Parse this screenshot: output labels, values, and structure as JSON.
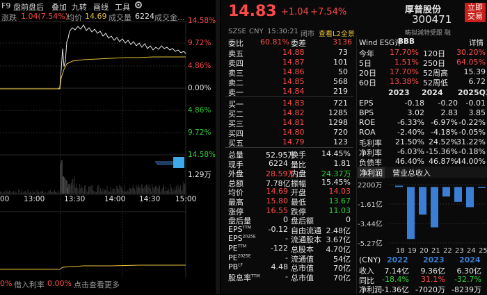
{
  "toolbar": {
    "items": [
      "F9",
      "盘前盘后",
      "叠加",
      "九转",
      "画线",
      "工具"
    ],
    "gear_icon": "gear-icon"
  },
  "infobar": {
    "label_change": "涨跌",
    "change_value": "1.04(7.54%)",
    "label_avg": "均价",
    "avg_value": "14.69",
    "label_volume": "成交量",
    "volume_value": "6224",
    "label_amount": "成交金..."
  },
  "chart_axis": {
    "price_pct": [
      "14.58%",
      "9.72%",
      "4.86%",
      "0.00%",
      "4.86%",
      "9.72%",
      "14.58%"
    ],
    "volume_label": "1.29万",
    "times": [
      "13:00",
      "13:30",
      "14:00",
      "14:30",
      "15:00"
    ],
    "left_edge_time": "00"
  },
  "bottombar": {
    "left_value": "0%",
    "label_borrow": "借入利率",
    "borrow_value": "0.00%",
    "more_link": "点击查看更多"
  },
  "quote": {
    "price": "14.83",
    "change": "+1.04",
    "change_pct": "+7.54%",
    "name": "厚普股份",
    "code": "300471",
    "btn_buy": "立即",
    "btn_buy2": "交易",
    "exchange": "SZSE",
    "currency": "CNY",
    "time": "15:30:21",
    "status": "闭市",
    "l2_link": "查看L2全景",
    "right_label": "畴拟減特受跟 融"
  },
  "order_book": {
    "weibi_label": "委比",
    "weibi_value": "60.81%",
    "weicha_label": "委差",
    "weicha_value": "3136",
    "asks": [
      {
        "label": "卖五",
        "price": "14.88",
        "vol": "73"
      },
      {
        "label": "卖四",
        "price": "14.87",
        "vol": "101"
      },
      {
        "label": "卖三",
        "price": "14.86",
        "vol": "50"
      },
      {
        "label": "卖二",
        "price": "14.85",
        "vol": "568"
      },
      {
        "label": "卖一",
        "price": "14.84",
        "vol": "219"
      }
    ],
    "bids": [
      {
        "label": "买一",
        "price": "14.83",
        "vol": "721"
      },
      {
        "label": "买二",
        "price": "14.82",
        "vol": "1285"
      },
      {
        "label": "买三",
        "price": "14.81",
        "vol": "1298"
      },
      {
        "label": "买四",
        "price": "14.80",
        "vol": "720"
      },
      {
        "label": "买五",
        "price": "14.79",
        "vol": "123"
      }
    ]
  },
  "stats": [
    {
      "l1": "总量",
      "v1": "52.95万",
      "c1": "white",
      "l2": "换手",
      "v2": "14.45%",
      "c2": "white"
    },
    {
      "l1": "现手",
      "v1": "6224",
      "c1": "white",
      "l2": "量比",
      "v2": "1.81",
      "c2": "white"
    },
    {
      "l1": "外盘",
      "v1": "28.59万",
      "c1": "red",
      "l2": "内盘",
      "v2": "24.37万",
      "c2": "green"
    },
    {
      "l1": "总额",
      "v1": "7.78亿",
      "c1": "white",
      "l2": "振幅",
      "v2": "15.45%",
      "c2": "white"
    },
    {
      "l1": "均价",
      "v1": "14.69",
      "c1": "red",
      "l2": "开盘",
      "v2": "14.03",
      "c2": "red"
    },
    {
      "l1": "最高",
      "v1": "15.80",
      "c1": "red",
      "l2": "最低",
      "v2": "13.67",
      "c2": "green"
    },
    {
      "l1": "涨停",
      "v1": "16.55",
      "c1": "red",
      "l2": "跌停",
      "v2": "11.03",
      "c2": "green"
    },
    {
      "l1": "盘后量",
      "v1": "0",
      "c1": "white",
      "l2": "盘后额",
      "v2": "0",
      "c2": "white"
    },
    {
      "l1": "EPS",
      "sup1": "TTM",
      "v1": "-0.12",
      "c1": "white",
      "l2": "自由流通",
      "v2": "2.48亿",
      "c2": "white"
    },
    {
      "l1": "EPS",
      "sup1": "2025E",
      "v1": "-",
      "c1": "white",
      "l2": "流通股本",
      "v2": "3.67亿",
      "c2": "white"
    },
    {
      "l1": "PE",
      "sup1": "TTM",
      "v1": "-122",
      "c1": "white",
      "l2": "总股本",
      "v2": "4.70亿",
      "c2": "white"
    },
    {
      "l1": "PE",
      "sup1": "2025E",
      "v1": "-",
      "c1": "white",
      "l2": "流通值",
      "v2": "54亿",
      "c2": "white"
    },
    {
      "l1": "PB",
      "sup1": "LF",
      "v1": "4.48",
      "c1": "white",
      "l2": "总市值",
      "v2": "70亿",
      "c2": "white"
    },
    {
      "l1": "股息率",
      "sup1": "TTM",
      "v1": "-",
      "c1": "white",
      "l2": "总市值",
      "v2": "70亿",
      "c2": "white"
    }
  ],
  "wind": {
    "title": "Wind ESG评",
    "rating": "BBB",
    "detail": "详情",
    "perf": [
      {
        "l1": "今年",
        "v1": "17.70%",
        "c1": "red",
        "l2": "120日",
        "v2": "30.20%",
        "c2": "red"
      },
      {
        "l1": "5日",
        "v1": "1.51%",
        "c1": "red",
        "l2": "250日",
        "v2": "64.05%",
        "c2": "red"
      },
      {
        "l1": "20日",
        "v1": "17.70%",
        "c1": "red",
        "l2": "52周高",
        "v2": "15.39",
        "c2": "white"
      },
      {
        "l1": "60日",
        "v1": "13.38%",
        "c1": "red",
        "l2": "52周低",
        "v2": "6.72",
        "c2": "white"
      }
    ],
    "years": [
      "2023",
      "2024",
      "2025Q3"
    ],
    "fin": [
      {
        "label": "EPS",
        "v": [
          "-0.18",
          "-0.20",
          "-0.01"
        ]
      },
      {
        "label": "BPS",
        "v": [
          "3.02",
          "2.83",
          "3.85"
        ]
      },
      {
        "label": "ROE",
        "v": [
          "-6.33%",
          "-6.97%",
          "-0.22%"
        ]
      },
      {
        "label": "ROA",
        "v": [
          "-2.40%",
          "-4.18%",
          "-0.05%"
        ]
      },
      {
        "label": "毛利率",
        "v": [
          "21.50%",
          "24.52%",
          "31.22%"
        ]
      },
      {
        "label": "净利率",
        "v": [
          "-6.03%",
          "-15.36%",
          "-0.18%"
        ]
      },
      {
        "label": "负债率",
        "v": [
          "46.40%",
          "46.87%",
          "44.00%"
        ]
      }
    ],
    "tabs": [
      "净利润",
      "营业总收入"
    ]
  },
  "chart_data": {
    "type": "bar",
    "categories": [
      "18",
      "19",
      "20",
      "21",
      "22",
      "23",
      "24",
      "25"
    ],
    "values": [
      0.12,
      -4.9,
      -2.6,
      -3.8,
      -0.9,
      -1.4,
      -1.9,
      -0.1
    ],
    "ylabels": [
      "2200万",
      "-1.61亿",
      "-3.44亿",
      "-5.27亿"
    ],
    "ylim": [
      -5.27,
      0.22
    ],
    "color": "#3a7fd5"
  },
  "annual": {
    "header_unit": "(CNY)",
    "years": [
      "2022",
      "2023",
      "2024"
    ],
    "rows": [
      {
        "label": "收入",
        "v": [
          "7.14亿",
          "9.36亿",
          "6.30亿"
        ],
        "c": [
          "white",
          "white",
          "white"
        ]
      },
      {
        "label": "同比",
        "v": [
          "-18.4%",
          "31.1%",
          "-32.7%"
        ],
        "c": [
          "green",
          "red",
          "green"
        ]
      },
      {
        "label": "净利润",
        "v": [
          "-1.36亿",
          "-7020万",
          "-8239万"
        ],
        "c": [
          "white",
          "white",
          "white"
        ]
      }
    ]
  }
}
